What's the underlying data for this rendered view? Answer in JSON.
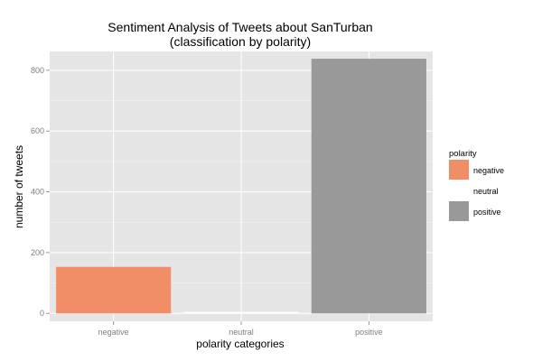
{
  "chart_data": {
    "type": "bar",
    "title": [
      "Sentiment Analysis of Tweets about SanTurban",
      "(classification by polarity)"
    ],
    "xlabel": "polarity categories",
    "ylabel": "number of tweets",
    "categories": [
      "negative",
      "neutral",
      "positive"
    ],
    "values": [
      153,
      5,
      838
    ],
    "colors": [
      "#f28e67",
      "#ffffff",
      "#999999"
    ],
    "ylim": [
      -26,
      862
    ],
    "yticks": [
      0,
      200,
      400,
      600,
      800
    ],
    "grid": true,
    "panel_background": "#e5e5e5",
    "legend": {
      "title": "polarity",
      "entries": [
        "negative",
        "neutral",
        "positive"
      ],
      "position": "right"
    }
  }
}
